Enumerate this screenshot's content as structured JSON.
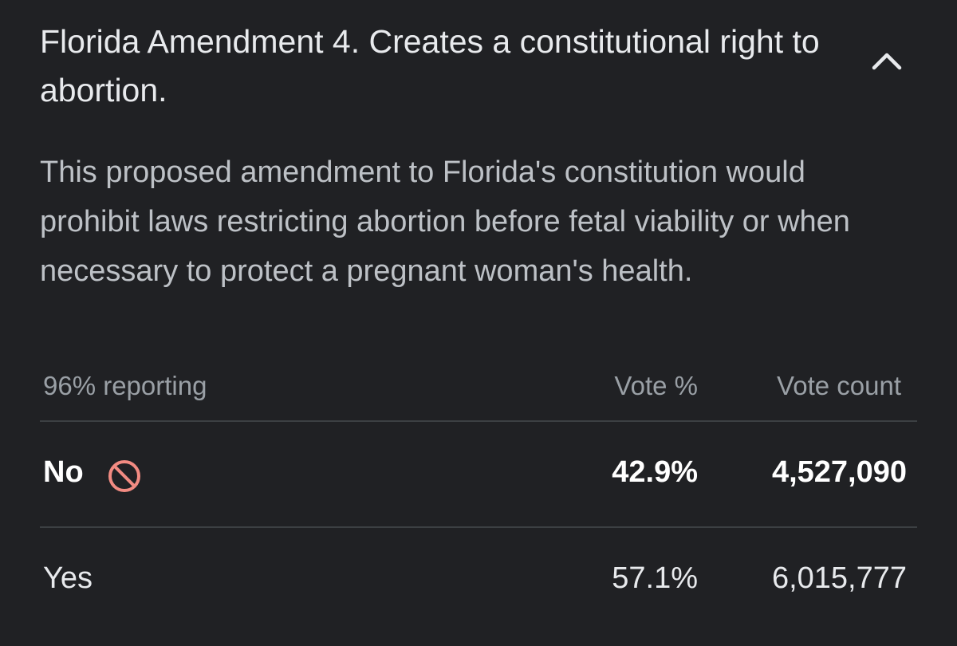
{
  "card": {
    "title": "Florida Amendment 4. Creates a constitutional right to abortion.",
    "description": "This proposed amendment to Florida's constitution would prohibit laws restricting abortion before fetal viability or when necessary to protect a pregnant woman's health.",
    "reporting": "96% reporting",
    "columns": {
      "vote_pct": "Vote %",
      "vote_count": "Vote count"
    },
    "results": [
      {
        "choice": "No",
        "vote_pct": "42.9%",
        "vote_count": "4,527,090",
        "icon": "prohibited-icon",
        "icon_color": "#f28b82"
      },
      {
        "choice": "Yes",
        "vote_pct": "57.1%",
        "vote_count": "6,015,777"
      }
    ]
  },
  "colors": {
    "background": "#202124",
    "primary_text": "#e8eaed",
    "secondary_text": "#bdc1c6",
    "muted_text": "#9aa0a6",
    "divider": "#3c4043"
  }
}
